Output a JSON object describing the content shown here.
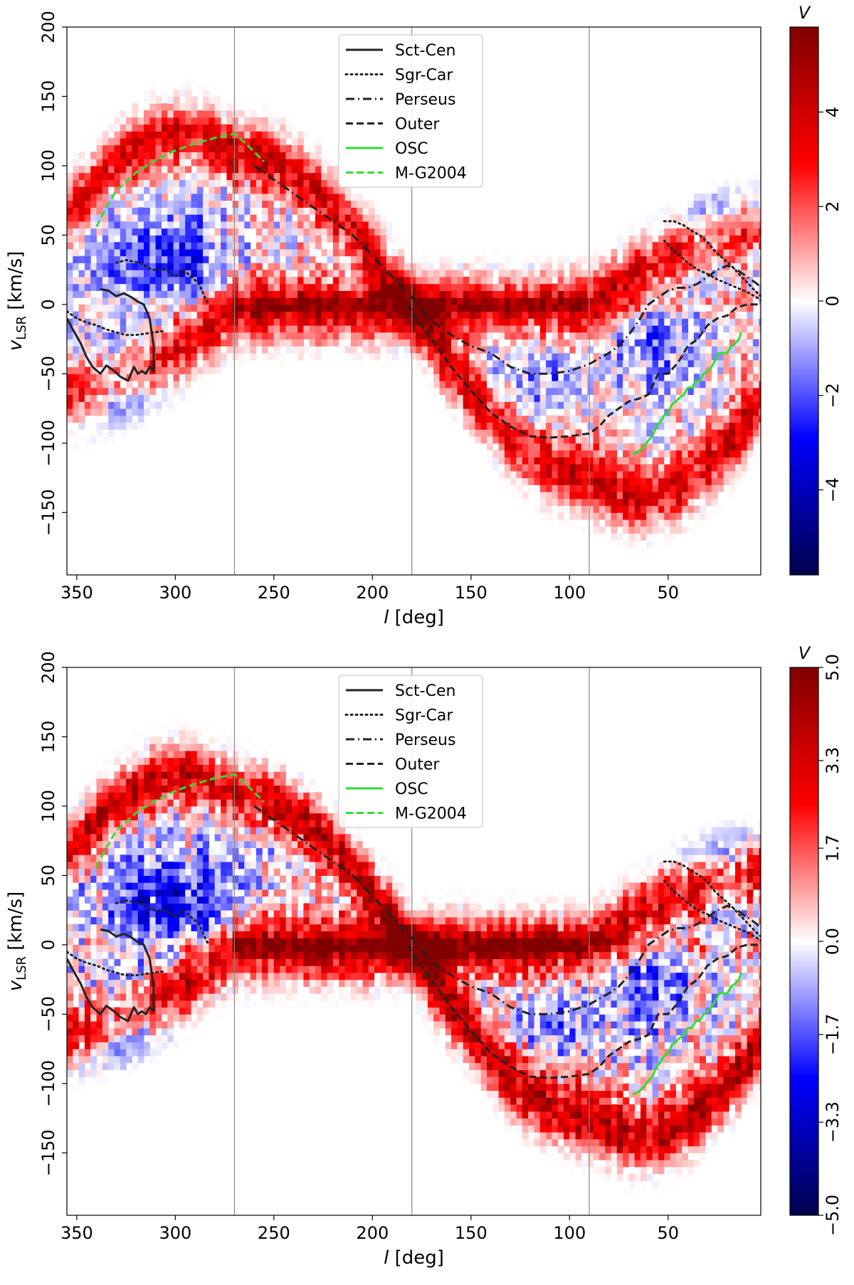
{
  "chart_data": [
    {
      "type": "heatmap",
      "title": "",
      "xlabel_main": "l",
      "xlabel_unit": " [deg]",
      "ylabel_main": "v",
      "ylabel_sub": "LSR",
      "ylabel_unit": " [km/s]",
      "xlim": [
        355,
        3
      ],
      "ylim": [
        -195,
        200
      ],
      "x_reversed": true,
      "xticks": [
        350,
        300,
        250,
        200,
        150,
        100,
        50
      ],
      "yticks": [
        -150,
        -100,
        -50,
        0,
        50,
        100,
        150,
        200
      ],
      "vlines": [
        270,
        180,
        90
      ],
      "colorbar": {
        "title": "V",
        "range": [
          -5.8,
          5.8
        ],
        "ticks": [
          -4,
          -2,
          0,
          2,
          4
        ],
        "tick_labels": [
          "−4",
          "−2",
          "0",
          "2",
          "4"
        ],
        "colormap": "seismic"
      },
      "legend": {
        "placement": "top-center",
        "entries": [
          "Sct-Cen",
          "Sgr-Car",
          "Perseus",
          "Outer",
          "OSC",
          "M-G2004"
        ]
      },
      "series": [
        {
          "name": "Sct-Cen",
          "style": "solid",
          "color": "#222222",
          "x": [
            355,
            352,
            348,
            345,
            342,
            338,
            335,
            331,
            328,
            324,
            321,
            319,
            317,
            315,
            313,
            311,
            311,
            312,
            313,
            316,
            319,
            322,
            326,
            330,
            334,
            338
          ],
          "y": [
            -10,
            -18,
            -28,
            -38,
            -45,
            -50,
            -44,
            -48,
            -52,
            -55,
            -45,
            -50,
            -48,
            -50,
            -45,
            -48,
            -30,
            -20,
            -10,
            0,
            2,
            5,
            8,
            6,
            10,
            11
          ]
        },
        {
          "name": "Sgr-Car",
          "style": "dotted",
          "color": "#222222",
          "x": [
            355,
            350,
            345,
            340,
            335,
            330,
            325,
            320,
            315,
            310,
            305
          ],
          "y": [
            -5,
            -10,
            -13,
            -15,
            -18,
            -20,
            -22,
            -22,
            -21,
            -20,
            -19
          ]
        },
        {
          "name": "Sgr-Car",
          "style": "dotted",
          "color": "#222222",
          "x": [
            330,
            325,
            318,
            312,
            305,
            300,
            296,
            292,
            288,
            285,
            283
          ],
          "y": [
            30,
            32,
            30,
            25,
            25,
            20,
            25,
            20,
            15,
            5,
            0
          ]
        },
        {
          "name": "Sgr-Car",
          "style": "dotted",
          "color": "#222222",
          "x": [
            52,
            48,
            44,
            40,
            35,
            30,
            25,
            20,
            15,
            10,
            5,
            3
          ],
          "y": [
            46,
            40,
            35,
            30,
            25,
            22,
            18,
            15,
            12,
            9,
            5,
            3
          ]
        },
        {
          "name": "Sgr-Car",
          "style": "dotted",
          "color": "#222222",
          "x": [
            52,
            47,
            42,
            38,
            34,
            30,
            26,
            22,
            18,
            14,
            10,
            6,
            3
          ],
          "y": [
            60,
            60,
            57,
            53,
            50,
            45,
            38,
            33,
            28,
            22,
            16,
            10,
            6
          ]
        },
        {
          "name": "Perseus",
          "style": "dashdot",
          "color": "#222222",
          "x": [
            260,
            250,
            240,
            230,
            220,
            210,
            200,
            190,
            180,
            170,
            160,
            150,
            140,
            130,
            120,
            110,
            100,
            90,
            80,
            75,
            70,
            65,
            60,
            55,
            50,
            45,
            40,
            35,
            30,
            25,
            20,
            15,
            10,
            5,
            3
          ],
          "y": [
            100,
            90,
            80,
            70,
            60,
            50,
            35,
            20,
            5,
            -12,
            -22,
            -30,
            -35,
            -45,
            -50,
            -50,
            -48,
            -43,
            -35,
            -30,
            -22,
            -12,
            0,
            5,
            10,
            12,
            12,
            15,
            20,
            25,
            28,
            25,
            20,
            15,
            12
          ]
        },
        {
          "name": "Outer",
          "style": "dashed",
          "color": "#222222",
          "x": [
            182,
            178,
            170,
            160,
            150,
            140,
            130,
            120,
            110,
            100,
            90,
            85,
            80,
            75,
            70,
            65,
            60,
            55,
            50,
            45,
            40,
            35,
            30,
            25,
            20,
            15,
            10,
            5,
            3
          ],
          "y": [
            0,
            -10,
            -25,
            -45,
            -62,
            -78,
            -88,
            -95,
            -96,
            -95,
            -93,
            -88,
            -80,
            -75,
            -70,
            -68,
            -65,
            -50,
            -50,
            -42,
            -30,
            -25,
            -15,
            -10,
            -8,
            -2,
            0,
            0,
            0
          ]
        },
        {
          "name": "OSC",
          "style": "solid",
          "color": "#33dd33",
          "x": [
            68,
            65,
            62,
            60,
            58,
            56,
            54,
            52,
            50,
            48,
            46,
            44,
            42,
            40,
            38,
            36,
            34,
            32,
            30,
            28,
            26,
            24,
            22,
            20,
            18,
            16,
            14,
            13
          ],
          "y": [
            -108,
            -106,
            -102,
            -98,
            -95,
            -88,
            -85,
            -80,
            -78,
            -72,
            -70,
            -67,
            -65,
            -60,
            -60,
            -55,
            -55,
            -50,
            -48,
            -45,
            -40,
            -35,
            -35,
            -35,
            -30,
            -28,
            -25,
            -20
          ]
        },
        {
          "name": "M-G2004",
          "style": "dashed",
          "color": "#33dd33",
          "x": [
            340,
            335,
            330,
            320,
            310,
            300,
            290,
            280,
            270,
            265,
            260,
            255
          ],
          "y": [
            56,
            70,
            82,
            95,
            104,
            111,
            116,
            120,
            123,
            117,
            110,
            103
          ]
        }
      ]
    },
    {
      "type": "heatmap",
      "title": "",
      "xlabel_main": "l",
      "xlabel_unit": " [deg]",
      "ylabel_main": "v",
      "ylabel_sub": "LSR",
      "ylabel_unit": " [km/s]",
      "xlim": [
        355,
        3
      ],
      "ylim": [
        -195,
        200
      ],
      "x_reversed": true,
      "xticks": [
        350,
        300,
        250,
        200,
        150,
        100,
        50
      ],
      "yticks": [
        -150,
        -100,
        -50,
        0,
        50,
        100,
        150,
        200
      ],
      "vlines": [
        270,
        180,
        90
      ],
      "colorbar": {
        "title": "V",
        "range": [
          -5.0,
          5.0
        ],
        "ticks": [
          -5.0,
          -3.3,
          -1.7,
          0.0,
          1.7,
          3.3,
          5.0
        ],
        "tick_labels": [
          "−5.0",
          "−3.3",
          "−1.7",
          "0.0",
          "1.7",
          "3.3",
          "5.0"
        ],
        "colormap": "seismic"
      },
      "legend": {
        "placement": "top-center",
        "entries": [
          "Sct-Cen",
          "Sgr-Car",
          "Perseus",
          "Outer",
          "OSC",
          "M-G2004"
        ]
      },
      "series": [
        {
          "name": "Sct-Cen",
          "style": "solid",
          "color": "#222222",
          "x": [
            355,
            352,
            348,
            345,
            342,
            338,
            335,
            331,
            328,
            324,
            321,
            319,
            317,
            315,
            313,
            311,
            311,
            312,
            313,
            316,
            319,
            322,
            326,
            330,
            334,
            338
          ],
          "y": [
            -10,
            -18,
            -28,
            -38,
            -45,
            -50,
            -44,
            -48,
            -52,
            -55,
            -45,
            -50,
            -48,
            -50,
            -45,
            -48,
            -30,
            -20,
            -10,
            0,
            2,
            5,
            8,
            6,
            10,
            11
          ]
        },
        {
          "name": "Sgr-Car",
          "style": "dotted",
          "color": "#222222",
          "x": [
            355,
            350,
            345,
            340,
            335,
            330,
            325,
            320,
            315,
            310,
            305
          ],
          "y": [
            -5,
            -10,
            -13,
            -15,
            -18,
            -20,
            -22,
            -22,
            -21,
            -20,
            -19
          ]
        },
        {
          "name": "Sgr-Car",
          "style": "dotted",
          "color": "#222222",
          "x": [
            330,
            325,
            318,
            312,
            305,
            300,
            296,
            292,
            288,
            285,
            283
          ],
          "y": [
            30,
            32,
            30,
            25,
            25,
            20,
            25,
            20,
            15,
            5,
            0
          ]
        },
        {
          "name": "Sgr-Car",
          "style": "dotted",
          "color": "#222222",
          "x": [
            52,
            48,
            44,
            40,
            35,
            30,
            25,
            20,
            15,
            10,
            5,
            3
          ],
          "y": [
            46,
            40,
            35,
            30,
            25,
            22,
            18,
            15,
            12,
            9,
            5,
            3
          ]
        },
        {
          "name": "Sgr-Car",
          "style": "dotted",
          "color": "#222222",
          "x": [
            52,
            47,
            42,
            38,
            34,
            30,
            26,
            22,
            18,
            14,
            10,
            6,
            3
          ],
          "y": [
            60,
            60,
            57,
            53,
            50,
            45,
            38,
            33,
            28,
            22,
            16,
            10,
            6
          ]
        },
        {
          "name": "Perseus",
          "style": "dashdot",
          "color": "#222222",
          "x": [
            260,
            250,
            240,
            230,
            220,
            210,
            200,
            190,
            180,
            170,
            160,
            150,
            140,
            130,
            120,
            110,
            100,
            90,
            80,
            75,
            70,
            65,
            60,
            55,
            50,
            45,
            40,
            35,
            30,
            25,
            20,
            15,
            10,
            5,
            3
          ],
          "y": [
            100,
            90,
            80,
            70,
            60,
            50,
            35,
            20,
            5,
            -12,
            -22,
            -30,
            -35,
            -45,
            -50,
            -50,
            -48,
            -43,
            -35,
            -30,
            -22,
            -12,
            0,
            5,
            10,
            12,
            12,
            15,
            20,
            25,
            28,
            25,
            20,
            15,
            12
          ]
        },
        {
          "name": "Outer",
          "style": "dashed",
          "color": "#222222",
          "x": [
            182,
            178,
            170,
            160,
            150,
            140,
            130,
            120,
            110,
            100,
            90,
            85,
            80,
            75,
            70,
            65,
            60,
            55,
            50,
            45,
            40,
            35,
            30,
            25,
            20,
            15,
            10,
            5,
            3
          ],
          "y": [
            0,
            -10,
            -25,
            -45,
            -62,
            -78,
            -88,
            -95,
            -96,
            -95,
            -93,
            -88,
            -80,
            -75,
            -70,
            -68,
            -65,
            -50,
            -50,
            -42,
            -30,
            -25,
            -15,
            -10,
            -8,
            -2,
            0,
            0,
            0
          ]
        },
        {
          "name": "OSC",
          "style": "solid",
          "color": "#33dd33",
          "x": [
            68,
            65,
            62,
            60,
            58,
            56,
            54,
            52,
            50,
            48,
            46,
            44,
            42,
            40,
            38,
            36,
            34,
            32,
            30,
            28,
            26,
            24,
            22,
            20,
            18,
            16,
            14,
            13
          ],
          "y": [
            -108,
            -106,
            -102,
            -98,
            -95,
            -88,
            -85,
            -80,
            -78,
            -72,
            -70,
            -67,
            -65,
            -60,
            -60,
            -55,
            -55,
            -50,
            -48,
            -45,
            -40,
            -35,
            -35,
            -35,
            -30,
            -28,
            -25,
            -20
          ]
        },
        {
          "name": "M-G2004",
          "style": "dashed",
          "color": "#33dd33",
          "x": [
            340,
            335,
            330,
            320,
            310,
            300,
            290,
            280,
            270,
            265,
            260,
            255
          ],
          "y": [
            56,
            70,
            82,
            95,
            104,
            111,
            116,
            120,
            123,
            117,
            110,
            103
          ]
        }
      ]
    }
  ]
}
